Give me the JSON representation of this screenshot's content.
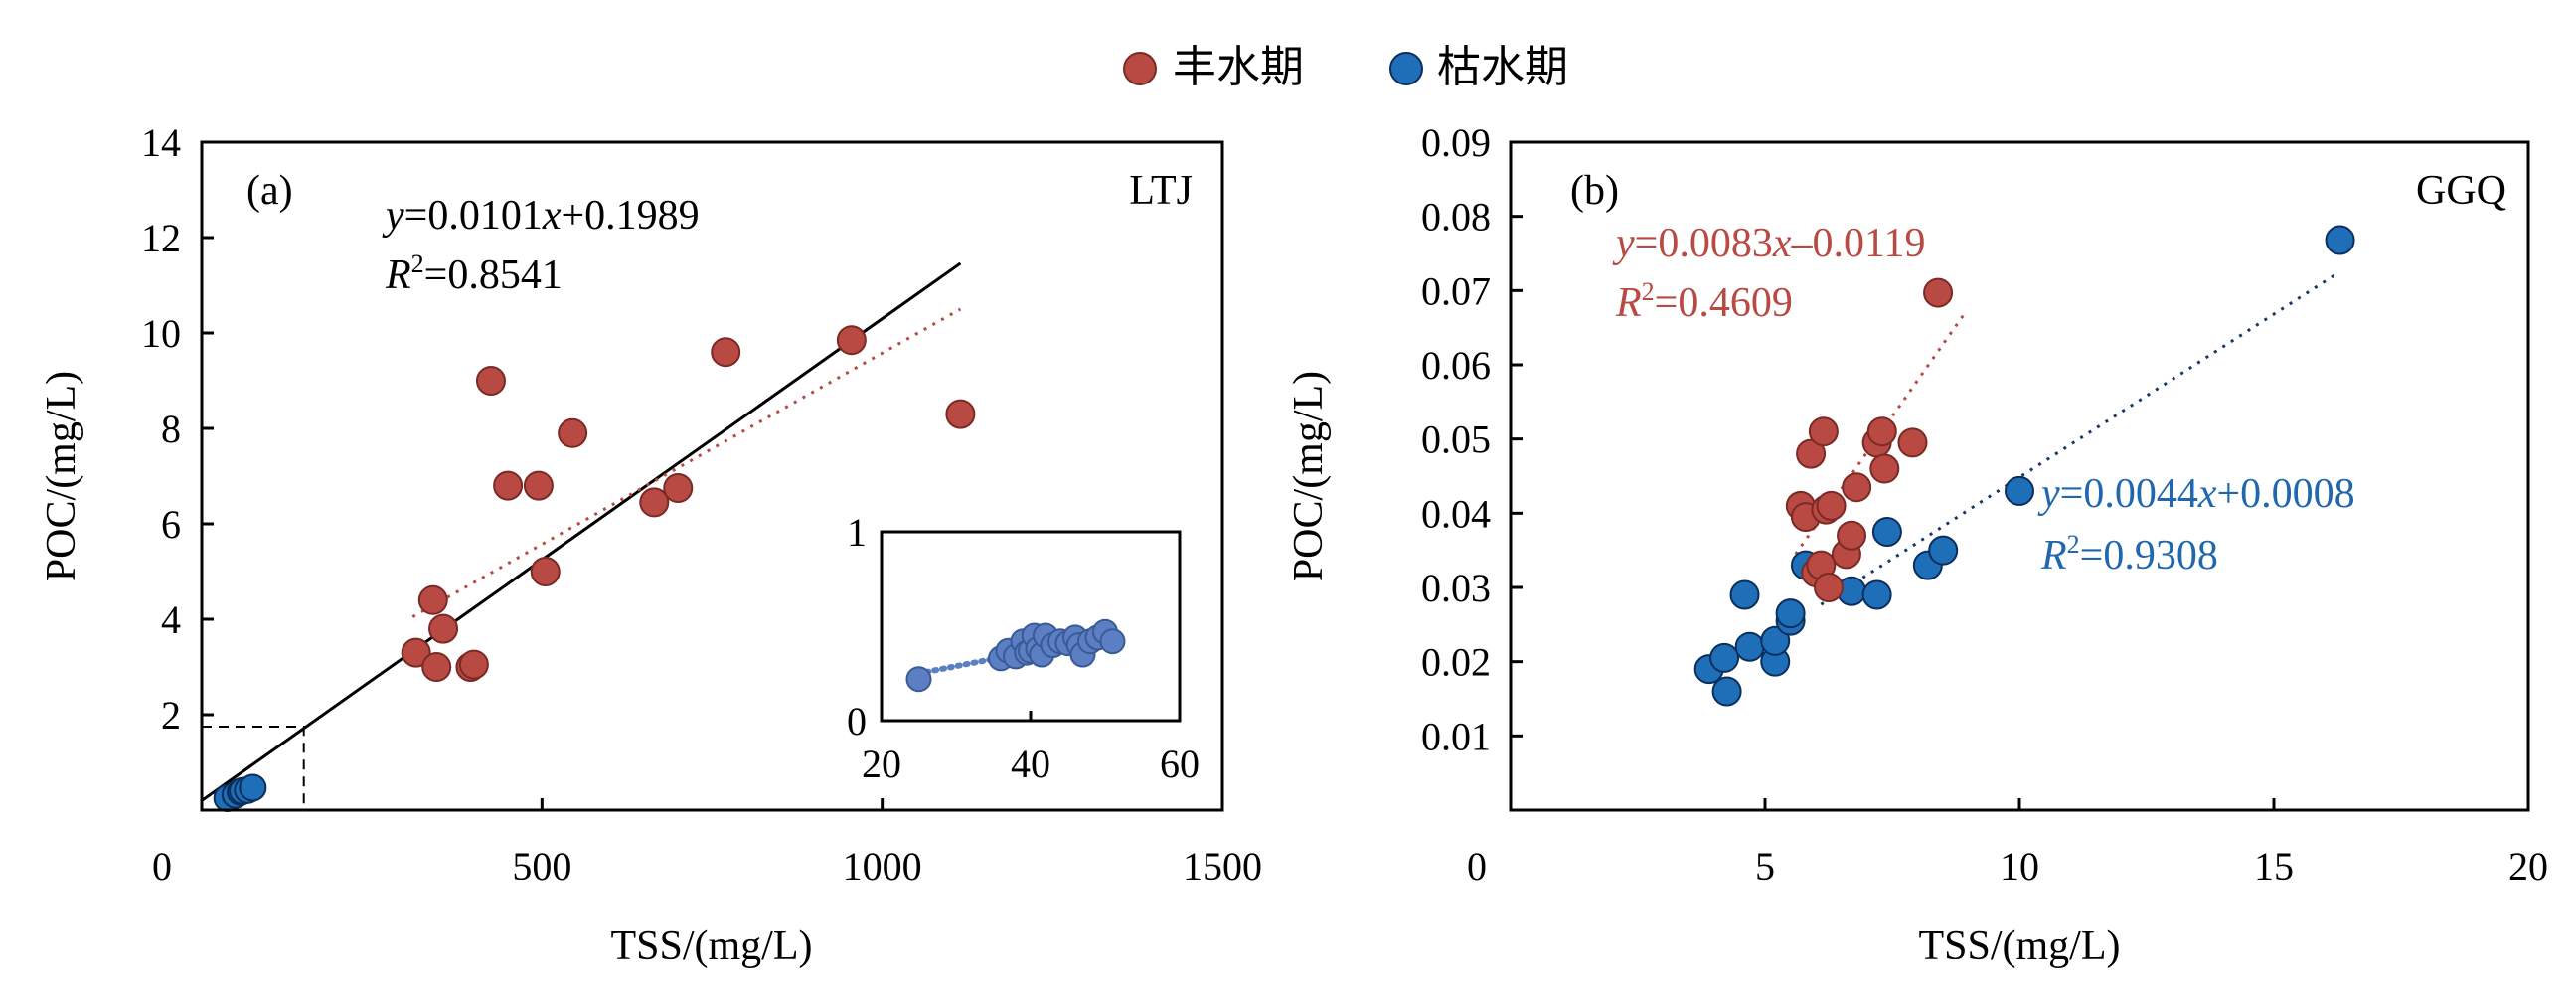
{
  "legend": [
    {
      "label": "丰水期",
      "color": "#b84a43"
    },
    {
      "label": "枯水期",
      "color": "#1f6fb8"
    }
  ],
  "colors": {
    "wet": "#b84a43",
    "wet_edge": "#7a2a24",
    "dry": "#1f6fb8",
    "dry_edge": "#0b2e5c",
    "inset": "#5b7fc2",
    "text_red": "#b84a43",
    "text_blue": "#2167ad",
    "axis": "#000000"
  },
  "chart_data": [
    {
      "id": "a",
      "type": "scatter",
      "panel_label": "(a)",
      "site": "LTJ",
      "xlabel": "TSS/(mg/L)",
      "ylabel": "POC/(mg/L)",
      "xlim": [
        0,
        1500
      ],
      "ylim": [
        0,
        14
      ],
      "xticks": [
        "0",
        "500",
        "1000",
        "1500"
      ],
      "yticks": [
        "2",
        "4",
        "6",
        "8",
        "10",
        "12",
        "14"
      ],
      "equation": {
        "y": "y",
        "mid": "=0.0101",
        "x": "x",
        "rest": "+0.1989"
      },
      "r2": {
        "r": "R",
        "sup": "2",
        "rest": "=0.8541"
      },
      "series": [
        {
          "name": "丰水期",
          "color": "#b84a43",
          "points": [
            [
              315,
              3.3
            ],
            [
              340,
              4.4
            ],
            [
              345,
              3.0
            ],
            [
              355,
              3.8
            ],
            [
              395,
              3.0
            ],
            [
              400,
              3.05
            ],
            [
              425,
              9.0
            ],
            [
              450,
              6.8
            ],
            [
              495,
              6.8
            ],
            [
              505,
              5.0
            ],
            [
              545,
              7.9
            ],
            [
              665,
              6.45
            ],
            [
              700,
              6.75
            ],
            [
              770,
              9.6
            ],
            [
              955,
              9.85
            ],
            [
              1115,
              8.3
            ]
          ],
          "fit": {
            "x": [
              310,
              1115
            ],
            "y": [
              4.05,
              10.5
            ],
            "style": "dotted"
          }
        },
        {
          "name": "枯水期",
          "color": "#1f6fb8",
          "points": [
            [
              25,
              0.25
            ],
            [
              33,
              0.32
            ],
            [
              38,
              0.38
            ],
            [
              40,
              0.4
            ],
            [
              45,
              0.42
            ],
            [
              50,
              0.47
            ]
          ]
        }
      ],
      "overall_fit": {
        "x": [
          0,
          1115
        ],
        "y": [
          0.1989,
          11.46
        ]
      },
      "zoom_box": {
        "x": [
          0,
          150
        ],
        "y": [
          0,
          1.75
        ]
      },
      "inset": {
        "xlim": [
          20,
          60
        ],
        "ylim": [
          0,
          1
        ],
        "xticks": [
          "20",
          "40",
          "60"
        ],
        "yticks": [
          "0",
          "1"
        ],
        "points": [
          [
            25,
            0.22
          ],
          [
            36,
            0.33
          ],
          [
            37,
            0.37
          ],
          [
            38,
            0.34
          ],
          [
            39,
            0.42
          ],
          [
            39.5,
            0.36
          ],
          [
            40,
            0.37
          ],
          [
            40.5,
            0.45
          ],
          [
            41,
            0.38
          ],
          [
            41.5,
            0.35
          ],
          [
            42,
            0.45
          ],
          [
            43,
            0.4
          ],
          [
            44,
            0.42
          ],
          [
            45,
            0.41
          ],
          [
            46,
            0.44
          ],
          [
            46.5,
            0.4
          ],
          [
            47,
            0.35
          ],
          [
            48,
            0.42
          ],
          [
            49,
            0.44
          ],
          [
            50,
            0.47
          ],
          [
            51,
            0.42
          ]
        ],
        "fit": {
          "x": [
            25,
            51
          ],
          "y": [
            0.25,
            0.45
          ]
        }
      }
    },
    {
      "id": "b",
      "type": "scatter",
      "panel_label": "(b)",
      "site": "GGQ",
      "xlabel": "TSS/(mg/L)",
      "ylabel": "POC/(mg/L)",
      "xlim": [
        0,
        20
      ],
      "ylim": [
        0,
        0.09
      ],
      "xticks": [
        "0",
        "5",
        "10",
        "15",
        "20"
      ],
      "yticks": [
        "0.01",
        "0.02",
        "0.03",
        "0.04",
        "0.05",
        "0.06",
        "0.07",
        "0.08",
        "0.09"
      ],
      "series": [
        {
          "name": "丰水期",
          "color": "#b84a43",
          "points": [
            [
              5.7,
              0.041
            ],
            [
              5.8,
              0.0395
            ],
            [
              5.9,
              0.048
            ],
            [
              6.0,
              0.032
            ],
            [
              6.1,
              0.033
            ],
            [
              6.15,
              0.051
            ],
            [
              6.2,
              0.0405
            ],
            [
              6.25,
              0.03
            ],
            [
              6.3,
              0.041
            ],
            [
              6.6,
              0.0345
            ],
            [
              6.7,
              0.037
            ],
            [
              6.8,
              0.0435
            ],
            [
              7.2,
              0.0495
            ],
            [
              7.3,
              0.051
            ],
            [
              7.35,
              0.046
            ],
            [
              7.9,
              0.0495
            ],
            [
              8.4,
              0.0697
            ]
          ],
          "fit": {
            "x": [
              5.6,
              8.9
            ],
            "y": [
              0.0345,
              0.0667
            ],
            "style": "dotted"
          },
          "equation": {
            "y": "y",
            "mid": "=0.0083",
            "x": "x",
            "rest": "–0.0119"
          },
          "r2": {
            "r": "R",
            "sup": "2",
            "rest": "=0.4609"
          }
        },
        {
          "name": "枯水期",
          "color": "#1f6fb8",
          "points": [
            [
              3.9,
              0.019
            ],
            [
              4.2,
              0.0205
            ],
            [
              4.25,
              0.016
            ],
            [
              4.6,
              0.029
            ],
            [
              4.7,
              0.022
            ],
            [
              5.2,
              0.02
            ],
            [
              5.2,
              0.0228
            ],
            [
              5.5,
              0.0255
            ],
            [
              5.5,
              0.0265
            ],
            [
              5.8,
              0.033
            ],
            [
              6.7,
              0.0295
            ],
            [
              7.2,
              0.029
            ],
            [
              7.4,
              0.0375
            ],
            [
              8.2,
              0.033
            ],
            [
              8.5,
              0.035
            ],
            [
              10.0,
              0.043
            ],
            [
              16.3,
              0.0768
            ]
          ],
          "fit": {
            "x": [
              6.1,
              16.2
            ],
            "y": [
              0.0277,
              0.0721
            ],
            "style": "dotted"
          },
          "equation": {
            "y": "y",
            "mid": "=0.0044",
            "x": "x",
            "rest": "+0.0008"
          },
          "r2": {
            "r": "R",
            "sup": "2",
            "rest": "=0.9308"
          }
        }
      ]
    }
  ]
}
